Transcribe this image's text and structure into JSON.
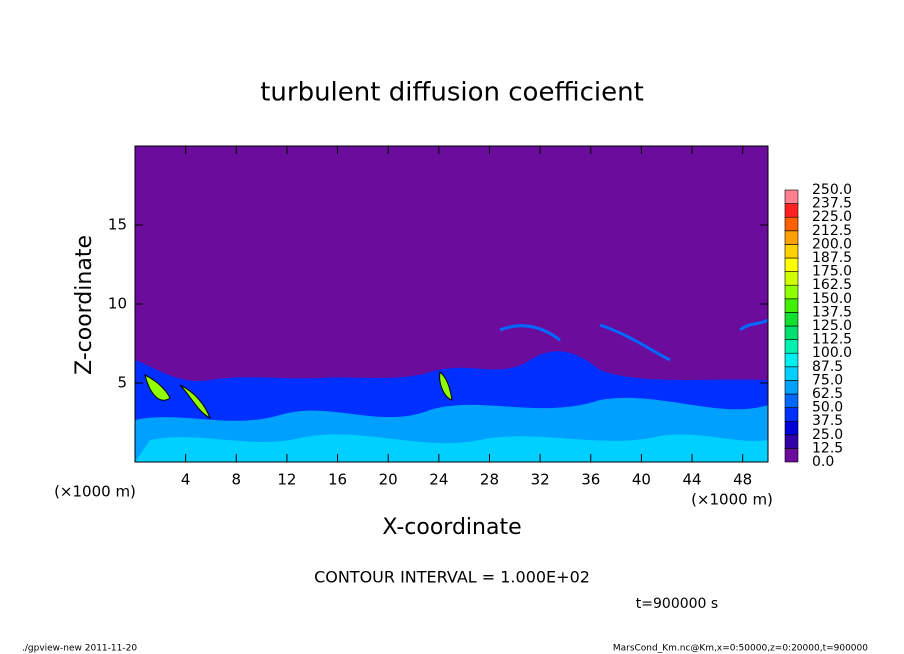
{
  "chart_data": {
    "type": "contour",
    "title": "turbulent diffusion coefficient",
    "x_label": "X-coordinate",
    "y_label": "Z-coordinate",
    "x_unit_left": "(×1000 m)",
    "x_unit_right": "(×1000 m)",
    "contour_note": "CONTOUR INTERVAL = 1.000E+02",
    "time_note": "t=900000 s",
    "footer_left": "./gpview-new  2011-11-20",
    "footer_right": "MarsCond_Km.nc@Km,x=0:50000,z=0:20000,t=900000",
    "xlim": [
      0,
      50
    ],
    "xticks": [
      4,
      8,
      12,
      16,
      20,
      24,
      28,
      32,
      36,
      40,
      44,
      48
    ],
    "ylim": [
      0,
      20
    ],
    "yticks": [
      5,
      10,
      15
    ],
    "levels": [
      {
        "value": 0,
        "label": "0.0"
      },
      12.5,
      25,
      37.5,
      50,
      62.5,
      75,
      87.5,
      {
        "value": 100,
        "label": "100.0"
      },
      112.5,
      125,
      137.5,
      150,
      162.5,
      175,
      187.5,
      {
        "value": 200,
        "label": "200.0"
      },
      212.5,
      225,
      237.5,
      {
        "value": 250,
        "label": "250.0"
      }
    ],
    "level_colors": [
      "#6c0c9c",
      "#3000a8",
      "#0000d8",
      "#0030ff",
      "#0068ff",
      "#00a0ff",
      "#00d0ff",
      "#00f0f0",
      "#00f0b0",
      "#00e070",
      "#10e030",
      "#40f000",
      "#90ff00",
      "#d0ff00",
      "#ffff00",
      "#ffd000",
      "#ffa000",
      "#ff6000",
      "#ff2020",
      "#ff8090"
    ]
  }
}
